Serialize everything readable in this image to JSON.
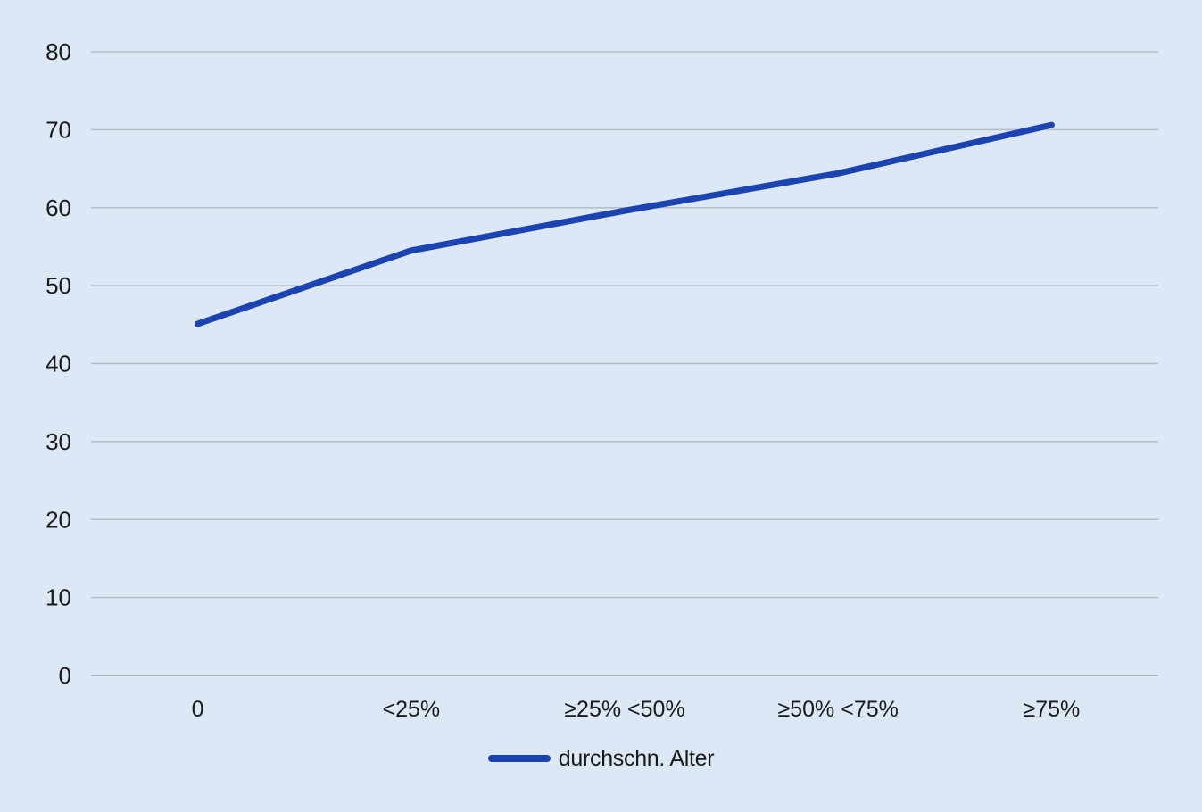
{
  "chart_data": {
    "type": "line",
    "categories": [
      "0",
      "<25%",
      "≥25% <50%",
      "≥50% <75%",
      "≥75%"
    ],
    "series": [
      {
        "name": "durchschn. Alter",
        "values": [
          45.1,
          54.5,
          59.6,
          64.4,
          70.6
        ]
      }
    ],
    "title": "",
    "xlabel": "",
    "ylabel": "",
    "ylim": [
      0,
      80
    ],
    "yticks": [
      0,
      10,
      20,
      30,
      40,
      50,
      60,
      70,
      80
    ],
    "grid": true,
    "legend_position": "bottom",
    "colors": {
      "line": "#1b44b0",
      "background": "#dce8f5",
      "gridline": "#b5bcc4",
      "axis_line": "#a6adb5",
      "text": "#1a1a1a"
    }
  }
}
